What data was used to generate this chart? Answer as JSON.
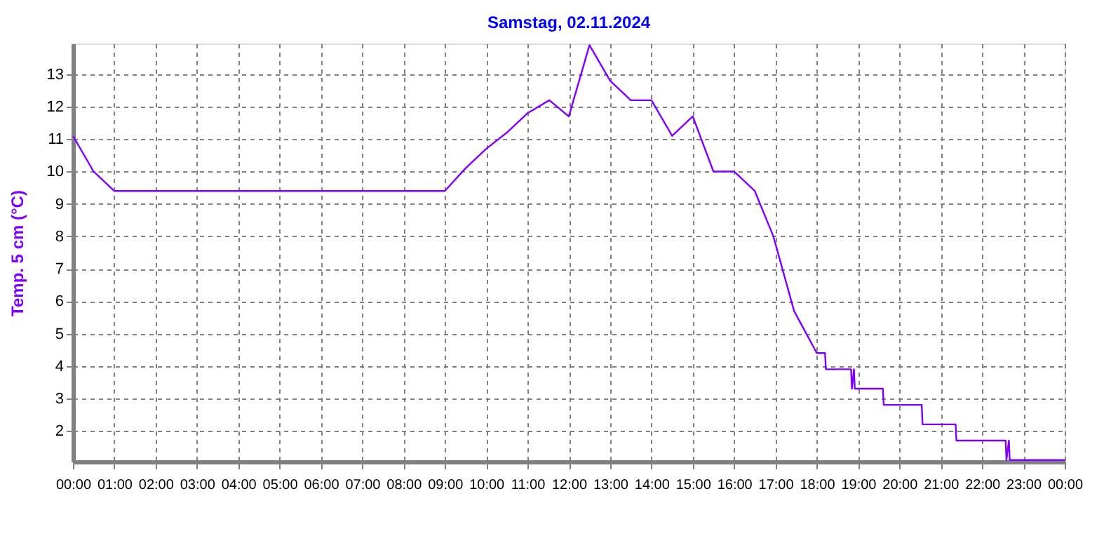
{
  "chart_data": {
    "type": "line",
    "title": "Samstag, 02.11.2024",
    "ylabel": "Temp. 5 cm (°C)",
    "x": [
      0,
      0.5,
      1.0,
      9.0,
      9.5,
      10.0,
      10.5,
      11.0,
      11.53,
      12.0,
      12.5,
      13.0,
      13.5,
      14.0,
      14.5,
      15.0,
      15.5,
      16.0,
      16.5,
      16.95,
      17.45,
      18.0,
      18.2,
      18.22,
      18.83,
      18.85,
      18.9,
      18.92,
      18.95,
      19.6,
      19.62,
      20.54,
      20.56,
      21.36,
      21.38,
      22.57,
      22.59,
      22.65,
      22.67,
      24.0
    ],
    "series": [
      {
        "color": "#8000ff",
        "values": [
          11.1,
          10.0,
          9.4,
          9.4,
          10.1,
          10.7,
          11.2,
          11.8,
          12.2,
          11.7,
          13.9,
          12.8,
          12.2,
          12.2,
          11.1,
          11.7,
          10.0,
          10.0,
          9.4,
          8.0,
          5.7,
          4.4,
          4.4,
          3.9,
          3.9,
          3.3,
          3.9,
          3.3,
          3.3,
          3.3,
          2.8,
          2.8,
          2.2,
          2.2,
          1.7,
          1.7,
          1.1,
          1.7,
          1.1,
          1.1
        ]
      }
    ],
    "xlim": [
      0,
      24
    ],
    "xticks": [
      {
        "value": 0,
        "label": "00:00"
      },
      {
        "value": 1,
        "label": "01:00"
      },
      {
        "value": 2,
        "label": "02:00"
      },
      {
        "value": 3,
        "label": "03:00"
      },
      {
        "value": 4,
        "label": "04:00"
      },
      {
        "value": 5,
        "label": "05:00"
      },
      {
        "value": 6,
        "label": "06:00"
      },
      {
        "value": 7,
        "label": "07:00"
      },
      {
        "value": 8,
        "label": "08:00"
      },
      {
        "value": 9,
        "label": "09:00"
      },
      {
        "value": 10,
        "label": "10:00"
      },
      {
        "value": 11,
        "label": "11:00"
      },
      {
        "value": 12,
        "label": "12:00"
      },
      {
        "value": 13,
        "label": "13:00"
      },
      {
        "value": 14,
        "label": "14:00"
      },
      {
        "value": 15,
        "label": "15:00"
      },
      {
        "value": 16,
        "label": "16:00"
      },
      {
        "value": 17,
        "label": "17:00"
      },
      {
        "value": 18,
        "label": "18:00"
      },
      {
        "value": 19,
        "label": "19:00"
      },
      {
        "value": 20,
        "label": "20:00"
      },
      {
        "value": 21,
        "label": "21:00"
      },
      {
        "value": 22,
        "label": "22:00"
      },
      {
        "value": 23,
        "label": "23:00"
      },
      {
        "value": 24,
        "label": "00:00"
      }
    ],
    "ylim": [
      1.05,
      13.95
    ],
    "yticks": [
      2,
      3,
      4,
      5,
      6,
      7,
      8,
      9,
      10,
      11,
      12,
      13
    ],
    "grid": true,
    "line_style": "solid",
    "marker": "none",
    "legend": false
  }
}
